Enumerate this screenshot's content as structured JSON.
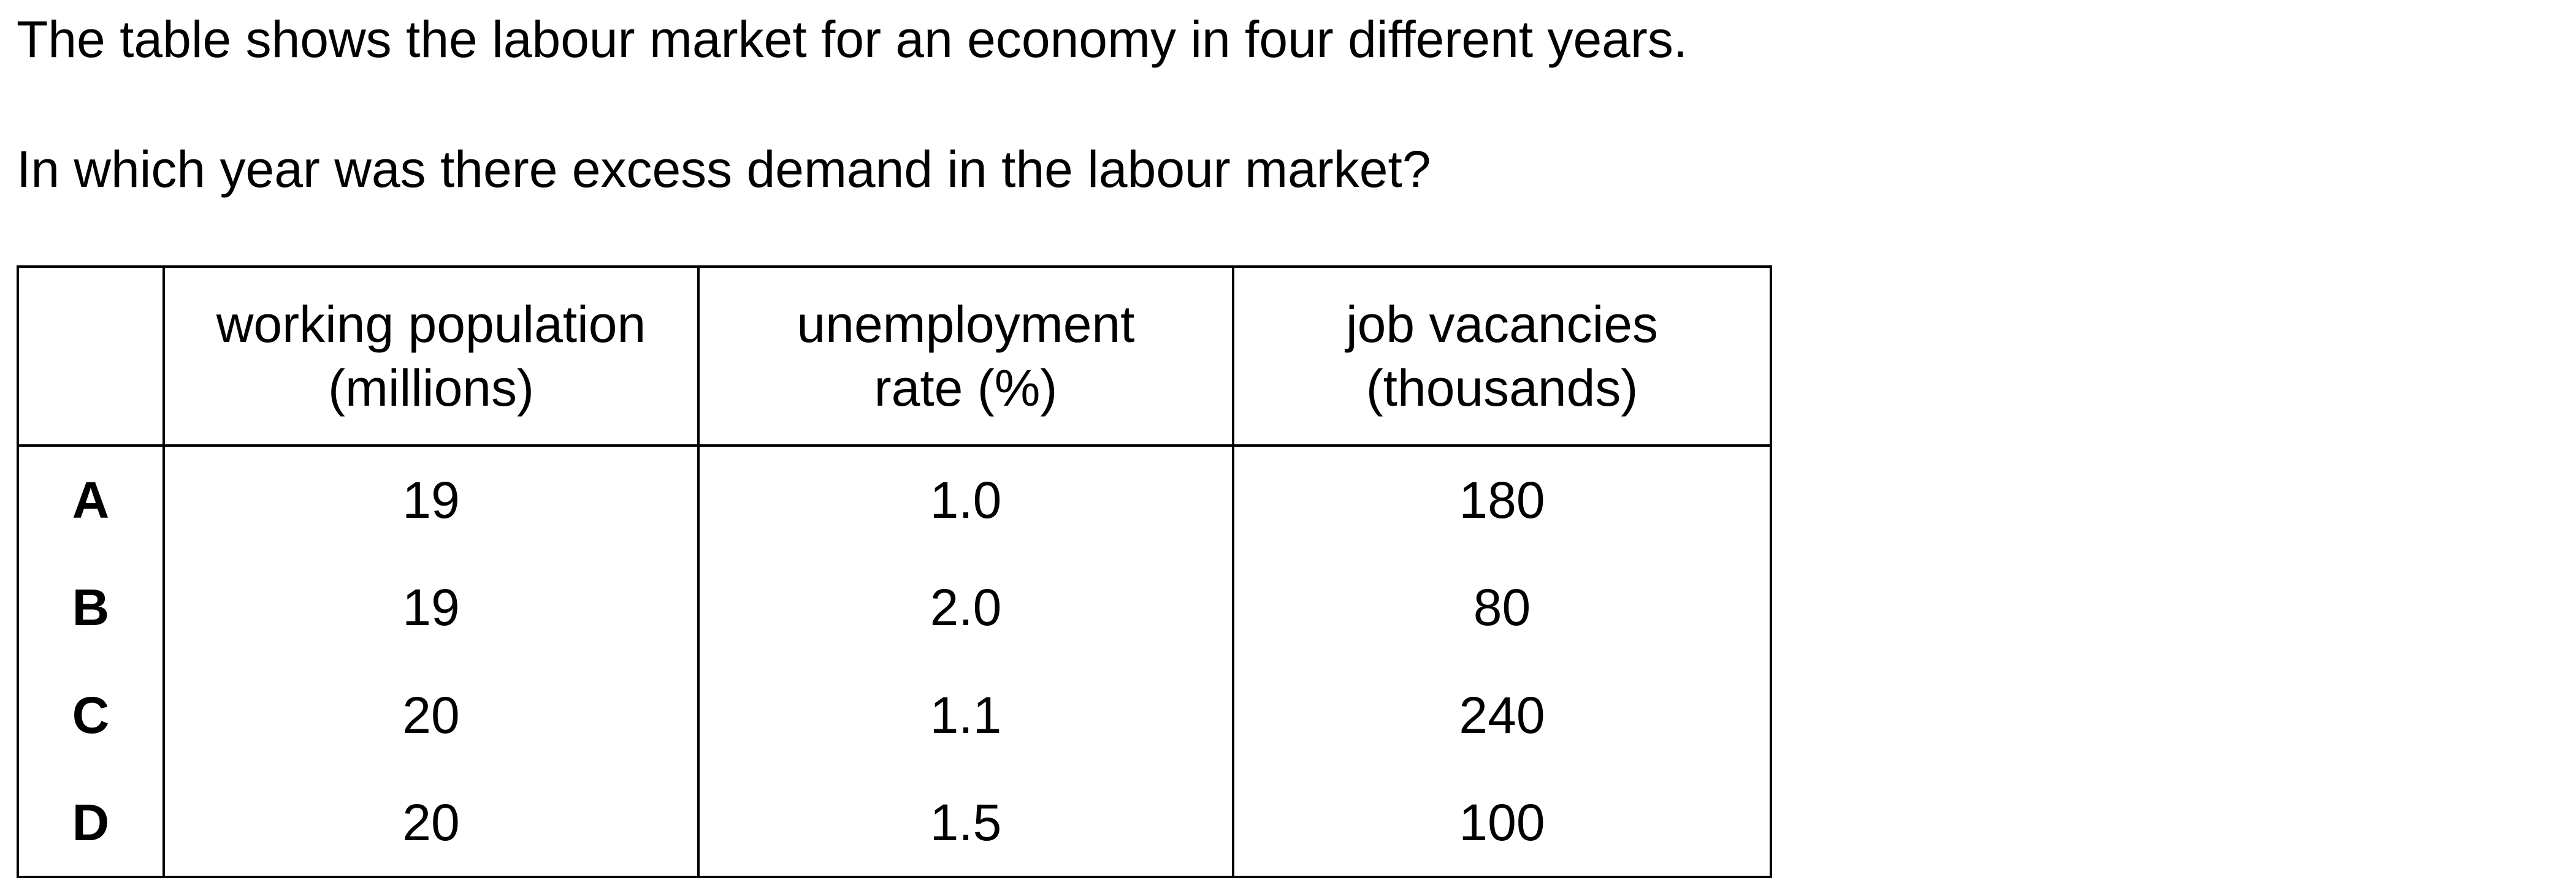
{
  "question": {
    "intro": "The table shows the labour market for an economy in four different years.",
    "prompt": "In which year was there excess demand in the labour market?"
  },
  "table": {
    "headers": {
      "key": "",
      "working_population_line1": "working population",
      "working_population_line2": "(millions)",
      "unemployment_line1": "unemployment",
      "unemployment_line2": "rate (%)",
      "vacancies_line1": "job vacancies",
      "vacancies_line2": "(thousands)"
    },
    "rows": [
      {
        "key": "A",
        "working_population": "19",
        "unemployment_rate": "1.0",
        "job_vacancies": "180"
      },
      {
        "key": "B",
        "working_population": "19",
        "unemployment_rate": "2.0",
        "job_vacancies": "80"
      },
      {
        "key": "C",
        "working_population": "20",
        "unemployment_rate": "1.1",
        "job_vacancies": "240"
      },
      {
        "key": "D",
        "working_population": "20",
        "unemployment_rate": "1.5",
        "job_vacancies": "100"
      }
    ]
  }
}
